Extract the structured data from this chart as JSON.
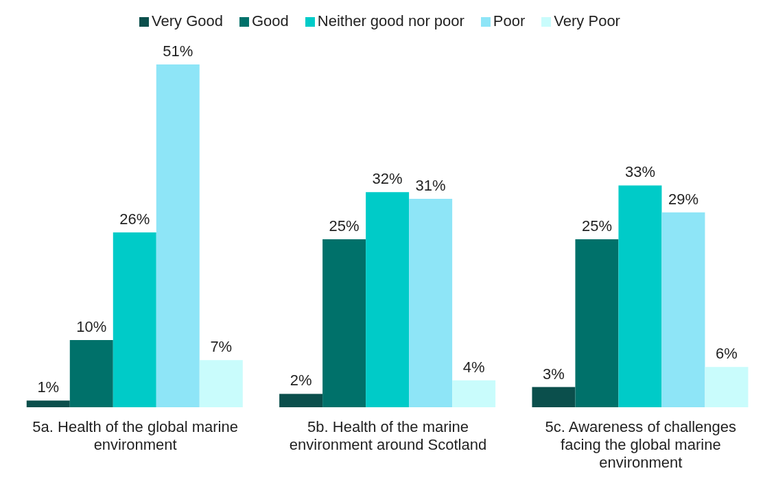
{
  "chart_data": {
    "type": "bar",
    "categories": [
      "5a. Health of the global marine environment",
      "5b. Health of the marine environment around Scotland",
      "5c. Awareness of challenges facing the global marine environment"
    ],
    "series": [
      {
        "name": "Very Good",
        "color": "#0b4f4c",
        "values": [
          1,
          2,
          3
        ],
        "value_labels": [
          "1%",
          "2%",
          "3%"
        ]
      },
      {
        "name": "Good",
        "color": "#00716a",
        "values": [
          10,
          25,
          25
        ],
        "value_labels": [
          "10%",
          "25%",
          "25%"
        ]
      },
      {
        "name": "Neither good nor poor",
        "color": "#00cbc8",
        "values": [
          26,
          32,
          33
        ],
        "value_labels": [
          "26%",
          "32%",
          "33%"
        ]
      },
      {
        "name": "Poor",
        "color": "#8ee5f7",
        "values": [
          51,
          31,
          29
        ],
        "value_labels": [
          "51%",
          "31%",
          "29%"
        ]
      },
      {
        "name": "Very Poor",
        "color": "#c9fcfc",
        "values": [
          7,
          4,
          6
        ],
        "value_labels": [
          "7%",
          "4%",
          "6%"
        ]
      }
    ],
    "legend": "top",
    "grid": false
  }
}
